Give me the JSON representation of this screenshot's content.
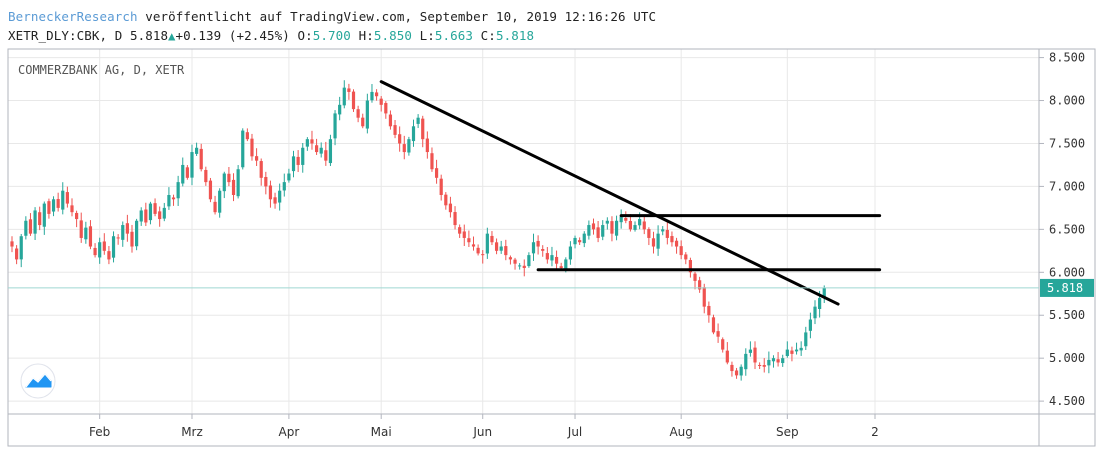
{
  "header": {
    "author": "BerneckerResearch",
    "published": " veröffentlicht auf TradingView.com, September 10, 2019 12:16:26 UTC",
    "symbol": "XETR_DLY:CBK, D",
    "last": "5.818",
    "change": "+0.139 (+2.45%)",
    "o_label": "O:",
    "o_value": "5.700",
    "h_label": "H:",
    "h_value": "5.850",
    "l_label": "L:",
    "l_value": "5.663",
    "c_label": "C:",
    "c_value": "5.818"
  },
  "colors": {
    "up": "#26a69a",
    "down": "#ef5350",
    "line": "#000000",
    "price_tag": "#26a69a",
    "grid": "#e8e8e8"
  },
  "logo_icon": "tradingview-logo-icon",
  "chart_data": {
    "type": "candlestick",
    "title": "COMMERZBANK AG, D, XETR",
    "ylim": [
      4.35,
      8.6
    ],
    "y_ticks": [
      "8.500",
      "8.000",
      "7.500",
      "7.000",
      "6.500",
      "6.000",
      "5.500",
      "5.000",
      "4.500"
    ],
    "x_ticks": [
      {
        "label": "Feb",
        "index": 19
      },
      {
        "label": "Mrz",
        "index": 39
      },
      {
        "label": "Apr",
        "index": 60
      },
      {
        "label": "Mai",
        "index": 80
      },
      {
        "label": "Jun",
        "index": 102
      },
      {
        "label": "Jul",
        "index": 122
      },
      {
        "label": "Aug",
        "index": 145
      },
      {
        "label": "Sep",
        "index": 168
      },
      {
        "label": "2",
        "index": 187
      }
    ],
    "last_price": "5.818",
    "last_price_value": 5.818,
    "trendlines": [
      {
        "from": [
          80,
          8.22
        ],
        "to": [
          179,
          5.63
        ]
      },
      {
        "from": [
          114,
          6.03
        ],
        "to": [
          188,
          6.03
        ]
      },
      {
        "from": [
          132,
          6.66
        ],
        "to": [
          188,
          6.66
        ]
      }
    ],
    "closes": [
      6.3,
      6.15,
      6.42,
      6.6,
      6.45,
      6.72,
      6.55,
      6.8,
      6.68,
      6.85,
      6.75,
      6.95,
      6.8,
      6.7,
      6.62,
      6.4,
      6.52,
      6.3,
      6.2,
      6.35,
      6.25,
      6.15,
      6.42,
      6.4,
      6.55,
      6.45,
      6.3,
      6.6,
      6.72,
      6.58,
      6.8,
      6.68,
      6.62,
      6.75,
      6.9,
      6.85,
      7.05,
      7.25,
      7.1,
      7.4,
      7.45,
      7.2,
      7.05,
      6.85,
      6.7,
      6.95,
      7.15,
      7.05,
      6.9,
      7.2,
      7.65,
      7.55,
      7.35,
      7.3,
      7.1,
      7.0,
      6.85,
      6.8,
      6.95,
      7.05,
      7.15,
      7.35,
      7.25,
      7.45,
      7.55,
      7.5,
      7.4,
      7.45,
      7.3,
      7.55,
      7.85,
      7.95,
      8.15,
      8.1,
      7.9,
      7.8,
      7.7,
      8.0,
      8.1,
      8.05,
      7.95,
      7.85,
      7.7,
      7.6,
      7.5,
      7.4,
      7.55,
      7.7,
      7.8,
      7.55,
      7.4,
      7.2,
      7.1,
      6.9,
      6.78,
      6.7,
      6.55,
      6.45,
      6.4,
      6.35,
      6.3,
      6.22,
      6.2,
      6.45,
      6.35,
      6.25,
      6.3,
      6.2,
      6.15,
      6.1,
      6.08,
      6.05,
      6.2,
      6.35,
      6.3,
      6.25,
      6.15,
      6.2,
      6.1,
      6.05,
      6.15,
      6.3,
      6.4,
      6.35,
      6.45,
      6.55,
      6.5,
      6.4,
      6.55,
      6.6,
      6.45,
      6.6,
      6.65,
      6.6,
      6.5,
      6.55,
      6.62,
      6.5,
      6.4,
      6.3,
      6.45,
      6.5,
      6.4,
      6.35,
      6.3,
      6.2,
      6.15,
      6.0,
      5.9,
      5.8,
      5.6,
      5.5,
      5.3,
      5.25,
      5.1,
      4.95,
      4.85,
      4.8,
      4.9,
      5.05,
      5.1,
      4.95,
      4.92,
      4.9,
      4.98,
      5.0,
      4.95,
      5.0,
      5.1,
      5.05,
      5.1,
      5.12,
      5.3,
      5.45,
      5.6,
      5.7,
      5.818
    ]
  }
}
